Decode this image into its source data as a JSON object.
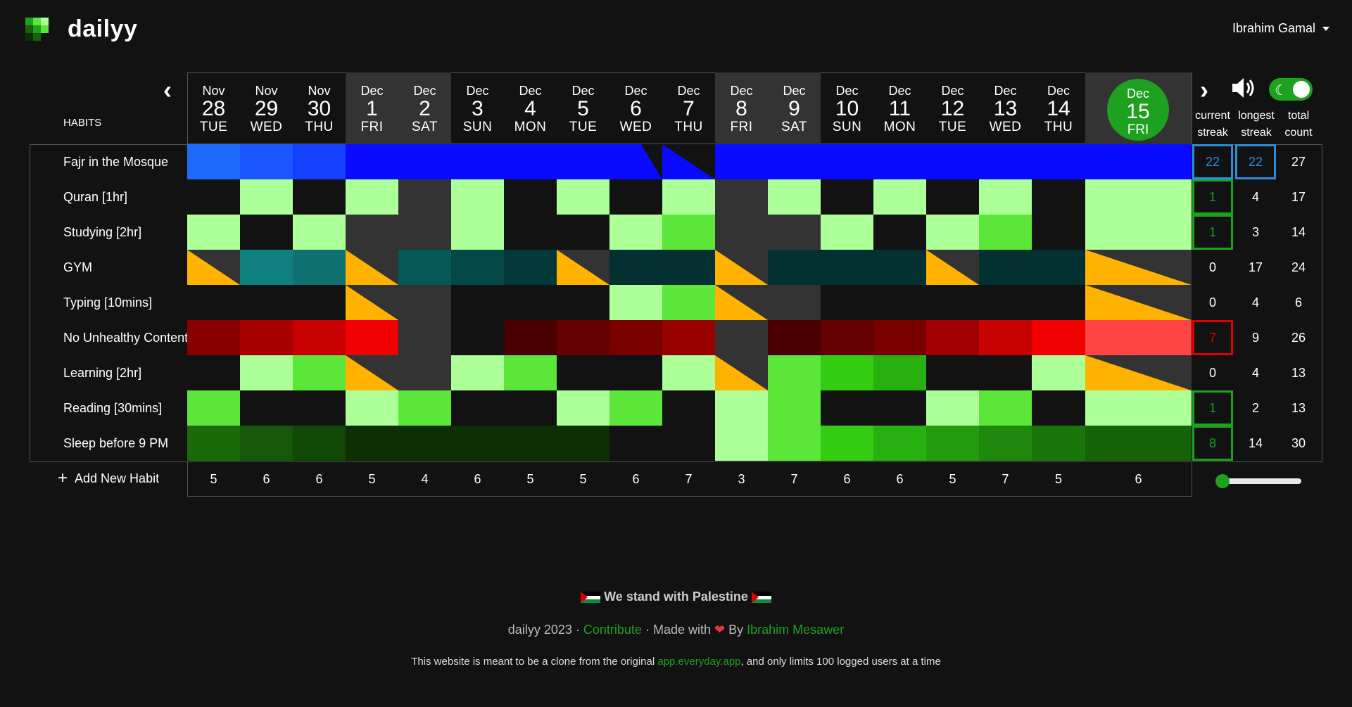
{
  "app": {
    "brand": "dailyy",
    "user": "Ibrahim Gamal"
  },
  "table": {
    "habits_header": "HABITS",
    "stat_headers": {
      "current": [
        "current",
        "streak"
      ],
      "longest": [
        "longest",
        "streak"
      ],
      "total": [
        "total",
        "count"
      ]
    },
    "add_habit_label": "Add New Habit"
  },
  "dates": [
    {
      "mon": "Nov",
      "day": "28",
      "wd": "TUE",
      "weekend": false
    },
    {
      "mon": "Nov",
      "day": "29",
      "wd": "WED",
      "weekend": false
    },
    {
      "mon": "Nov",
      "day": "30",
      "wd": "THU",
      "weekend": false
    },
    {
      "mon": "Dec",
      "day": "1",
      "wd": "FRI",
      "weekend": true
    },
    {
      "mon": "Dec",
      "day": "2",
      "wd": "SAT",
      "weekend": true
    },
    {
      "mon": "Dec",
      "day": "3",
      "wd": "SUN",
      "weekend": false
    },
    {
      "mon": "Dec",
      "day": "4",
      "wd": "MON",
      "weekend": false
    },
    {
      "mon": "Dec",
      "day": "5",
      "wd": "TUE",
      "weekend": false
    },
    {
      "mon": "Dec",
      "day": "6",
      "wd": "WED",
      "weekend": false
    },
    {
      "mon": "Dec",
      "day": "7",
      "wd": "THU",
      "weekend": false
    },
    {
      "mon": "Dec",
      "day": "8",
      "wd": "FRI",
      "weekend": true
    },
    {
      "mon": "Dec",
      "day": "9",
      "wd": "SAT",
      "weekend": true
    },
    {
      "mon": "Dec",
      "day": "10",
      "wd": "SUN",
      "weekend": false
    },
    {
      "mon": "Dec",
      "day": "11",
      "wd": "MON",
      "weekend": false
    },
    {
      "mon": "Dec",
      "day": "12",
      "wd": "TUE",
      "weekend": false
    },
    {
      "mon": "Dec",
      "day": "13",
      "wd": "WED",
      "weekend": false
    },
    {
      "mon": "Dec",
      "day": "14",
      "wd": "THU",
      "weekend": false
    }
  ],
  "today": {
    "mon": "Dec",
    "day": "15",
    "wd": "FRI"
  },
  "habits": [
    {
      "name": "Fajr in the Mosque",
      "current": "22",
      "longest": "22",
      "total": "27",
      "current_box": "#2b8fd8",
      "longest_box": "#2b8fd8",
      "stat_color": "#2b8fd8",
      "cells": [
        "#1e6aff",
        "#1a55ff",
        "#1540ff",
        "#0a0aff",
        "#0a0aff",
        "#0a0aff",
        "#0a0aff",
        "#0a0aff",
        "tri:#0a0aff:#121212:tl",
        "tri:#0a0aff:#121212:tr",
        "#0a0aff",
        "#0a0aff",
        "#0a0aff",
        "#0a0aff",
        "#0a0aff",
        "#0a0aff",
        "#0a0aff",
        "#0a0aff"
      ]
    },
    {
      "name": "Quran [1hr]",
      "current": "1",
      "longest": "4",
      "total": "17",
      "current_box": "#1ea11e",
      "stat_color": "#1ea11e",
      "cells": [
        "#121212",
        "#adff98",
        "#121212",
        "#adff98",
        "#333333",
        "#adff98",
        "#121212",
        "#adff98",
        "#121212",
        "#adff98",
        "#333333",
        "#adff98",
        "#121212",
        "#adff98",
        "#121212",
        "#adff98",
        "#121212",
        "#adff98"
      ]
    },
    {
      "name": "Studying [2hr]",
      "current": "1",
      "longest": "3",
      "total": "14",
      "current_box": "#1ea11e",
      "stat_color": "#1ea11e",
      "cells": [
        "#adff98",
        "#121212",
        "#adff98",
        "#333333",
        "#333333",
        "#adff98",
        "#121212",
        "#121212",
        "#adff98",
        "#5ce63a",
        "#333333",
        "#333333",
        "#adff98",
        "#121212",
        "#adff98",
        "#5ce63a",
        "#121212",
        "#adff98"
      ]
    },
    {
      "name": "GYM",
      "current": "0",
      "longest": "17",
      "total": "24",
      "cells": [
        "tri:#ffb300:#333333",
        "#0e8080",
        "#0e7070",
        "tri:#ffb300:#333333",
        "#055858",
        "#054848",
        "#033838",
        "tri:#ffb300:#333333",
        "#033030",
        "#033030",
        "tri:#ffb300:#333333",
        "#033030",
        "#033030",
        "#033030",
        "tri:#ffb300:#333333",
        "#033030",
        "#033030",
        "tri:#ffb300:#333333"
      ]
    },
    {
      "name": "Typing [10mins]",
      "current": "0",
      "longest": "4",
      "total": "6",
      "cells": [
        "#121212",
        "#121212",
        "#121212",
        "tri:#ffb300:#333333",
        "#333333",
        "#121212",
        "#121212",
        "#121212",
        "#adff98",
        "#5ce63a",
        "tri:#ffb300:#333333",
        "#333333",
        "#121212",
        "#121212",
        "#121212",
        "#121212",
        "#121212",
        "tri:#ffb300:#333333"
      ]
    },
    {
      "name": "No Unhealthy Content",
      "current": "7",
      "longest": "9",
      "total": "26",
      "current_box": "#e00000",
      "stat_color": "#e00000",
      "cells": [
        "#8a0000",
        "#a80000",
        "#c80000",
        "#f00000",
        "#333333",
        "#121212",
        "#4a0000",
        "#640000",
        "#7a0000",
        "#980000",
        "#333333",
        "#4a0000",
        "#640000",
        "#7a0000",
        "#a00000",
        "#c80000",
        "#f00000",
        "#ff4444"
      ]
    },
    {
      "name": "Learning [2hr]",
      "current": "0",
      "longest": "4",
      "total": "13",
      "cells": [
        "#121212",
        "#adff98",
        "#5ce63a",
        "tri:#ffb300:#333333",
        "#333333",
        "#adff98",
        "#5ce63a",
        "#121212",
        "#121212",
        "#adff98",
        "tri:#ffb300:#333333",
        "#5ce63a",
        "#33cc11",
        "#28b010",
        "#121212",
        "#121212",
        "#adff98",
        "tri:#ffb300:#333333"
      ]
    },
    {
      "name": "Reading [30mins]",
      "current": "1",
      "longest": "2",
      "total": "13",
      "current_box": "#1ea11e",
      "stat_color": "#1ea11e",
      "cells": [
        "#5ce63a",
        "#121212",
        "#121212",
        "#adff98",
        "#5ce63a",
        "#121212",
        "#121212",
        "#adff98",
        "#5ce63a",
        "#121212",
        "#adff98",
        "#5ce63a",
        "#121212",
        "#121212",
        "#adff98",
        "#5ce63a",
        "#121212",
        "#adff98"
      ]
    },
    {
      "name": "Sleep before 9 PM",
      "current": "8",
      "longest": "14",
      "total": "30",
      "current_box": "#1ea11e",
      "stat_color": "#1ea11e",
      "cells": [
        "#1a6a0a",
        "#145808",
        "#104806",
        "#0c3004",
        "#0c3004",
        "#0c3004",
        "#0c3004",
        "#0c3004",
        "#121212",
        "#121212",
        "#adff98",
        "#5ce63a",
        "#33cc11",
        "#28b010",
        "#249a0e",
        "#1e880c",
        "#1a760a",
        "#156208"
      ]
    }
  ],
  "totals": [
    "5",
    "6",
    "6",
    "5",
    "4",
    "6",
    "5",
    "5",
    "6",
    "7",
    "3",
    "7",
    "6",
    "6",
    "5",
    "7",
    "5",
    "6"
  ],
  "footer": {
    "palestine": "We stand with Palestine",
    "credit_prefix": "dailyy 2023 ·",
    "contribute": "Contribute",
    "made_with": "· Made with",
    "by": "By",
    "author": "Ibrahim Mesawer",
    "note_prefix": "This website is meant to be a clone from the original",
    "note_link": "app.everyday.app",
    "note_suffix": ", and only limits 100 logged users at a time"
  }
}
